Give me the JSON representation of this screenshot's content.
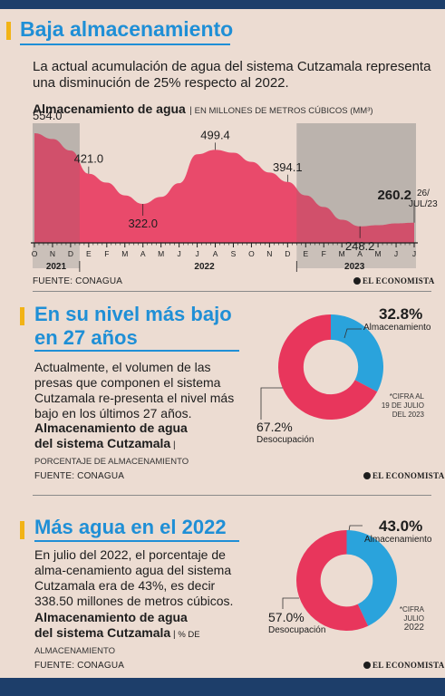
{
  "section1": {
    "title": "Baja almacenamiento",
    "subtitle": "La actual acumulación de agua del sistema Cutzamala representa una disminución de 25% respecto al 2022.",
    "chart_title": "Almacenamiento de agua",
    "chart_unit": "EN MILLONES DE METROS CÚBICOS (MM³)",
    "source": "FUENTE: CONAGUA",
    "brand": "EL ECONOMISTA"
  },
  "section2": {
    "title_line1": "En su nivel más bajo",
    "title_line2": "en 27 años",
    "body": "Actualmente, el volumen de las presas que componen el sistema Cutzamala re-presenta el nivel más bajo en los últimos 27 años.",
    "chart_title_line1": "Almacenamiento de agua",
    "chart_title_line2": "del sistema Cutzamala",
    "chart_unit": "PORCENTAJE DE ALMACENAMIENTO",
    "source": "FUENTE: CONAGUA",
    "brand": "EL ECONOMISTA",
    "pct_storage": "32.8%",
    "lbl_storage": "Almacenamiento",
    "pct_empty": "67.2%",
    "lbl_empty": "Desocupación",
    "note_line1": "*CIFRA AL",
    "note_line2": "19 DE JULIO",
    "note_line3": "DEL 2023"
  },
  "section3": {
    "title": "Más agua en el 2022",
    "body": "En julio del 2022, el porcentaje de alma-cenamiento agua del sistema Cutzamala era de 43%, es decir 338.50 millones de metros cúbicos.",
    "chart_title_line1": "Almacenamiento de agua",
    "chart_title_line2": "del sistema Cutzamala",
    "chart_unit_a": "% DE",
    "chart_unit_b": "ALMACENAMIENTO",
    "source": "FUENTE: CONAGUA",
    "brand": "EL ECONOMISTA",
    "pct_storage": "43.0%",
    "lbl_storage": "Almacenamiento",
    "pct_empty": "57.0%",
    "lbl_empty": "Desocupación",
    "note_line1": "*CIFRA",
    "note_line2": "JULIO",
    "note_line3": "2022"
  },
  "colors": {
    "accent": "#f2b316",
    "title": "#1f8fd6",
    "area": "#e8365c",
    "blue": "#2aa3dc",
    "navy": "#1d3e6a"
  },
  "chart_data": [
    {
      "type": "area",
      "title": "Almacenamiento de agua",
      "ylabel": "EN MILLONES DE METROS CÚBICOS (MM³)",
      "x": [
        "O",
        "N",
        "D",
        "E",
        "F",
        "M",
        "A",
        "M",
        "J",
        "J",
        "A",
        "S",
        "O",
        "N",
        "D",
        "E",
        "F",
        "M",
        "A",
        "M",
        "J",
        "J"
      ],
      "values": [
        554.0,
        535,
        497,
        421.0,
        392,
        350,
        322.0,
        345,
        390,
        485,
        499.4,
        490,
        460,
        425,
        394.1,
        350,
        312,
        270,
        248.2,
        252,
        258,
        260.2
      ],
      "year_labels": [
        "2021",
        "2022",
        "2023"
      ],
      "data_labels": [
        {
          "index": 0,
          "text": "554.0"
        },
        {
          "index": 3,
          "text": "421.0"
        },
        {
          "index": 6,
          "text": "322.0"
        },
        {
          "index": 10,
          "text": "499.4"
        },
        {
          "index": 14,
          "text": "394.1"
        },
        {
          "index": 18,
          "text": "248.2"
        },
        {
          "index": 21,
          "text": "260.2",
          "bold": true
        }
      ],
      "end_note_line1": "26/",
      "end_note_line2": "JUL/23"
    },
    {
      "type": "pie",
      "title": "Almacenamiento de agua del sistema Cutzamala",
      "slices": [
        {
          "name": "Almacenamiento",
          "value": 32.8,
          "color": "#2aa3dc"
        },
        {
          "name": "Desocupación",
          "value": 67.2,
          "color": "#e8365c"
        }
      ]
    },
    {
      "type": "pie",
      "title": "Almacenamiento de agua del sistema Cutzamala",
      "slices": [
        {
          "name": "Almacenamiento",
          "value": 43.0,
          "color": "#2aa3dc"
        },
        {
          "name": "Desocupación",
          "value": 57.0,
          "color": "#e8365c"
        }
      ]
    }
  ]
}
